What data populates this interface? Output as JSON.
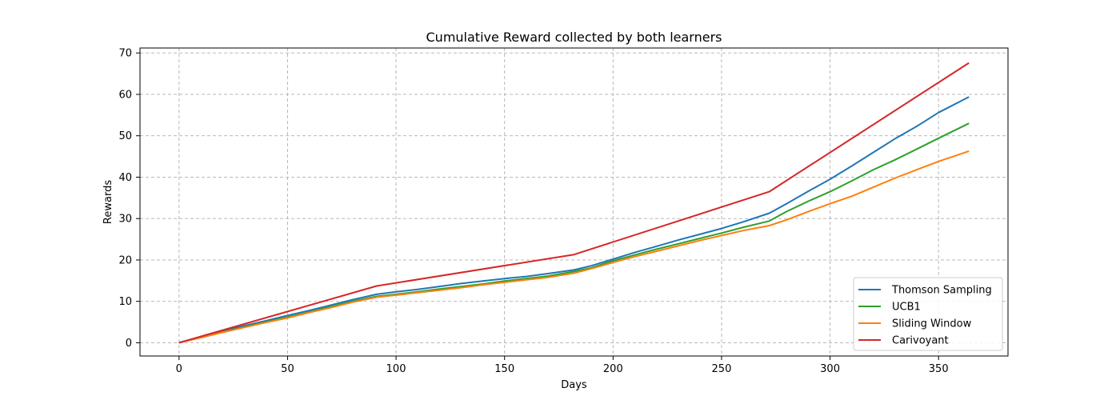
{
  "chart_data": {
    "type": "line",
    "title": "Cumulative Reward collected by both learners",
    "xlabel": "Days",
    "ylabel": "Rewards",
    "xlim": [
      -18,
      382
    ],
    "ylim": [
      -3.2,
      71.2
    ],
    "xticks": [
      "0",
      "50",
      "100",
      "150",
      "200",
      "250",
      "300",
      "350"
    ],
    "yticks": [
      "0",
      "10",
      "20",
      "30",
      "40",
      "50",
      "60",
      "70"
    ],
    "grid": true,
    "legend_position": "lower-right",
    "series": [
      {
        "name": "Thomson Sampling",
        "color": "#1f77b4",
        "x": [
          0,
          10,
          20,
          30,
          40,
          50,
          60,
          70,
          80,
          91,
          100,
          110,
          120,
          130,
          140,
          150,
          160,
          170,
          182,
          190,
          200,
          210,
          220,
          230,
          240,
          250,
          260,
          272,
          280,
          290,
          300,
          310,
          320,
          330,
          340,
          350,
          364
        ],
        "y": [
          0,
          1.4,
          2.8,
          4.1,
          5.3,
          6.6,
          7.8,
          9.1,
          10.4,
          11.7,
          12.3,
          12.9,
          13.6,
          14.3,
          14.9,
          15.5,
          16.0,
          16.7,
          17.6,
          18.6,
          20.2,
          21.8,
          23.3,
          24.8,
          26.2,
          27.6,
          29.2,
          31.3,
          33.6,
          36.6,
          39.5,
          42.7,
          46.0,
          49.3,
          52.3,
          55.6,
          59.4
        ]
      },
      {
        "name": "UCB1",
        "color": "#2ca02c",
        "x": [
          0,
          10,
          20,
          30,
          40,
          50,
          60,
          70,
          80,
          91,
          100,
          110,
          120,
          130,
          140,
          150,
          160,
          170,
          182,
          190,
          200,
          210,
          220,
          230,
          240,
          250,
          260,
          272,
          280,
          290,
          300,
          310,
          320,
          330,
          340,
          350,
          364
        ],
        "y": [
          0,
          1.3,
          2.6,
          3.8,
          5.0,
          6.2,
          7.4,
          8.7,
          10.0,
          11.2,
          11.7,
          12.3,
          13.0,
          13.6,
          14.2,
          14.9,
          15.5,
          16.1,
          17.2,
          18.1,
          19.8,
          21.2,
          22.6,
          23.9,
          25.2,
          26.5,
          27.9,
          29.4,
          31.7,
          34.2,
          36.5,
          39.1,
          41.8,
          44.2,
          46.8,
          49.4,
          53.0
        ]
      },
      {
        "name": "Sliding Window",
        "color": "#ff7f0e",
        "x": [
          0,
          10,
          20,
          30,
          40,
          50,
          60,
          70,
          80,
          91,
          100,
          110,
          120,
          130,
          140,
          150,
          160,
          170,
          182,
          190,
          200,
          210,
          220,
          230,
          240,
          250,
          260,
          272,
          280,
          290,
          300,
          310,
          320,
          330,
          340,
          350,
          364
        ],
        "y": [
          0,
          1.2,
          2.5,
          3.7,
          4.9,
          6.0,
          7.3,
          8.5,
          9.8,
          11.0,
          11.5,
          12.1,
          12.7,
          13.3,
          14.0,
          14.6,
          15.2,
          15.8,
          16.8,
          17.9,
          19.4,
          20.8,
          22.1,
          23.4,
          24.7,
          25.9,
          27.1,
          28.3,
          29.7,
          31.7,
          33.6,
          35.4,
          37.6,
          39.8,
          41.8,
          43.8,
          46.3
        ]
      },
      {
        "name": "Carivoyant",
        "color": "#d62728",
        "x": [
          0,
          91,
          182,
          272,
          364
        ],
        "y": [
          0,
          13.7,
          21.3,
          36.5,
          67.6
        ]
      }
    ]
  }
}
